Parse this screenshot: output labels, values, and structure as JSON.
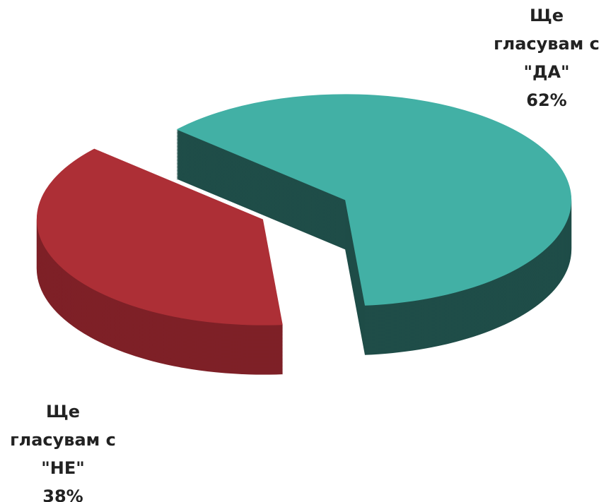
{
  "chart_data": {
    "type": "pie",
    "categories": [
      "Ще гласувам с \"ДА\"",
      "Ще гласувам с \"НЕ\""
    ],
    "values": [
      62,
      38
    ],
    "value_labels": [
      "62%",
      "38%"
    ],
    "colors": [
      "#42b0a5",
      "#ad2f36"
    ],
    "side_colors": [
      "#1f4d48",
      "#7e2027"
    ]
  }
}
